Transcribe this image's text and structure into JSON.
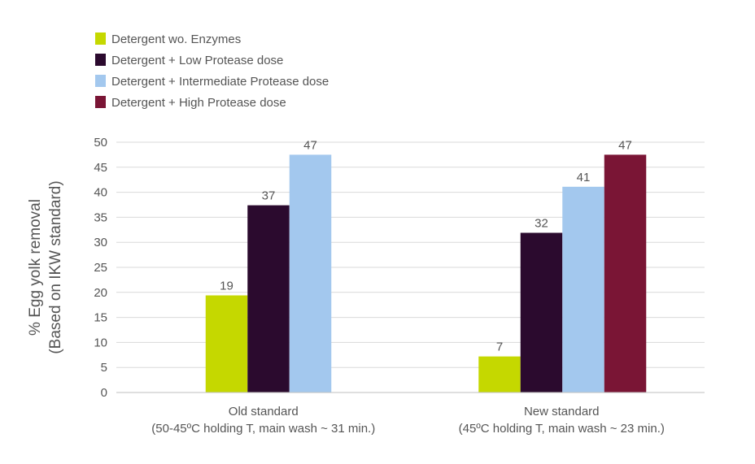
{
  "chart_data": {
    "type": "bar",
    "categories": [
      "Old standard",
      "New standard"
    ],
    "category_sublabels": [
      "(50-45ºC holding T, main wash ~ 31 min.)",
      "(45ºC holding T, main wash ~ 23 min.)"
    ],
    "series": [
      {
        "name": "Detergent wo. Enzymes",
        "color": "#c5d800",
        "values": [
          19.4,
          7.2
        ],
        "labels": [
          "19",
          "7"
        ]
      },
      {
        "name": "Detergent + Low Protease dose",
        "color": "#2b0a2e",
        "values": [
          37.4,
          31.9
        ],
        "labels": [
          "37",
          "32"
        ]
      },
      {
        "name": "Detergent + Intermediate Protease dose",
        "color": "#a3c8ee",
        "values": [
          47.5,
          41.1
        ],
        "labels": [
          "47",
          "41"
        ]
      },
      {
        "name": "Detergent + High Protease dose",
        "color": "#7a1535",
        "values": [
          null,
          47.5
        ],
        "labels": [
          "",
          "47"
        ]
      }
    ],
    "ylabel_line1": "% Egg yolk removal",
    "ylabel_line2": "(Based on IKW standard)",
    "ylim": [
      0,
      50
    ],
    "yticks": [
      0,
      5,
      10,
      15,
      20,
      25,
      30,
      35,
      40,
      45,
      50
    ],
    "grid": true,
    "legend_position": "top-left"
  }
}
